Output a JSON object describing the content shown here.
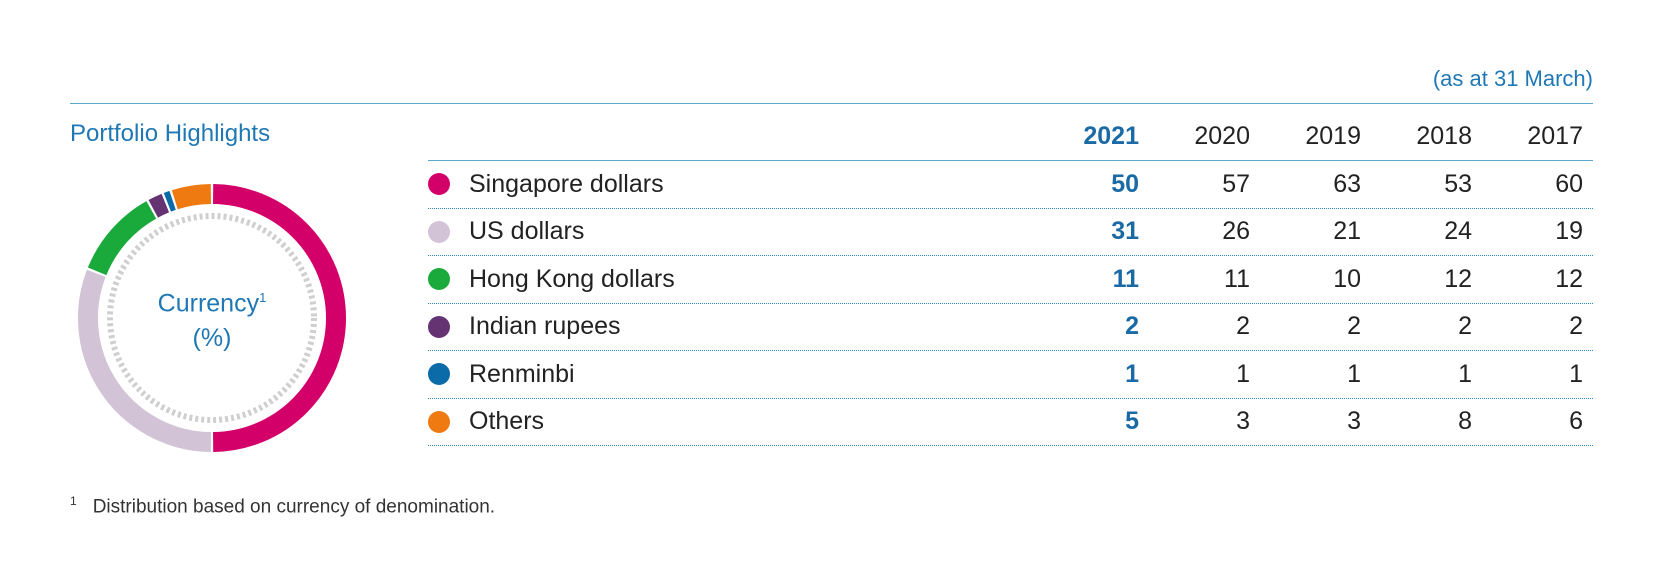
{
  "header": {
    "as_at": "(as at 31 March)",
    "title": "Portfolio Highlights"
  },
  "donut": {
    "label": "Currency",
    "superscript": "1",
    "unit": "(%)"
  },
  "footnote": {
    "mark": "1",
    "text": "Distribution based on currency of denomination."
  },
  "colors": {
    "singapore": "#d4006a",
    "us": "#d3c3d7",
    "hongkong": "#1aaa3c",
    "indian": "#653272",
    "renminbi": "#0b6aa8",
    "others": "#f07a12",
    "accent": "#1f78b4"
  },
  "chart_data": {
    "type": "pie",
    "donut": true,
    "years": [
      "2021",
      "2020",
      "2019",
      "2018",
      "2017"
    ],
    "highlight_year": "2021",
    "series": [
      {
        "name": "Singapore dollars",
        "color": "#d4006a",
        "values": [
          "50",
          "57",
          "63",
          "53",
          "60"
        ]
      },
      {
        "name": "US dollars",
        "color": "#d3c3d7",
        "values": [
          "31",
          "26",
          "21",
          "24",
          "19"
        ]
      },
      {
        "name": "Hong Kong dollars",
        "color": "#1aaa3c",
        "values": [
          "11",
          "11",
          "10",
          "12",
          "12"
        ]
      },
      {
        "name": "Indian rupees",
        "color": "#653272",
        "values": [
          "2",
          "2",
          "2",
          "2",
          "2"
        ]
      },
      {
        "name": "Renminbi",
        "color": "#0b6aa8",
        "values": [
          "1",
          "1",
          "1",
          "1",
          "1"
        ]
      },
      {
        "name": "Others",
        "color": "#f07a12",
        "values": [
          "5",
          "3",
          "3",
          "8",
          "6"
        ]
      }
    ]
  }
}
